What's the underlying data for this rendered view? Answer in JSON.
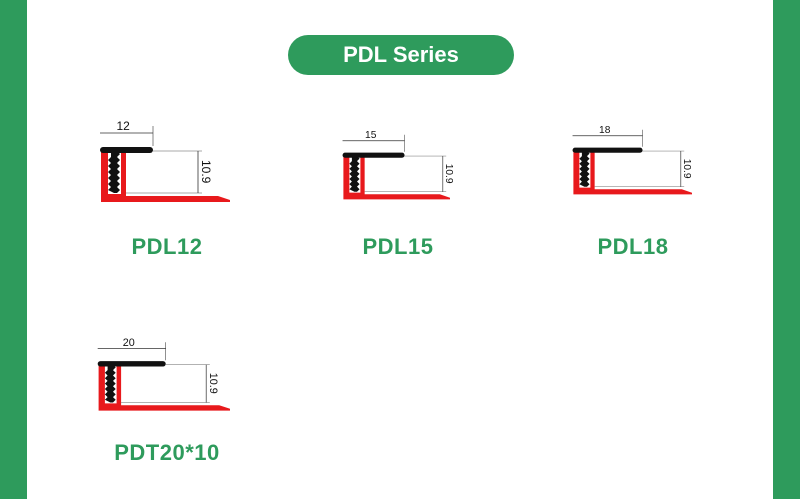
{
  "title": "PDL Series",
  "colors": {
    "brand_green": "#2e9b5c",
    "profile_red": "#e8191c",
    "insert_black": "#111111"
  },
  "products": [
    {
      "name": "PDL12",
      "width_label": "12",
      "height_label": "10.9",
      "width_mm": 12
    },
    {
      "name": "PDL15",
      "width_label": "15",
      "height_label": "10.9",
      "width_mm": 15
    },
    {
      "name": "PDL18",
      "width_label": "18",
      "height_label": "10.9",
      "width_mm": 18
    },
    {
      "name": "PDT20*10",
      "width_label": "20",
      "height_label": "10.9",
      "width_mm": 20
    }
  ]
}
